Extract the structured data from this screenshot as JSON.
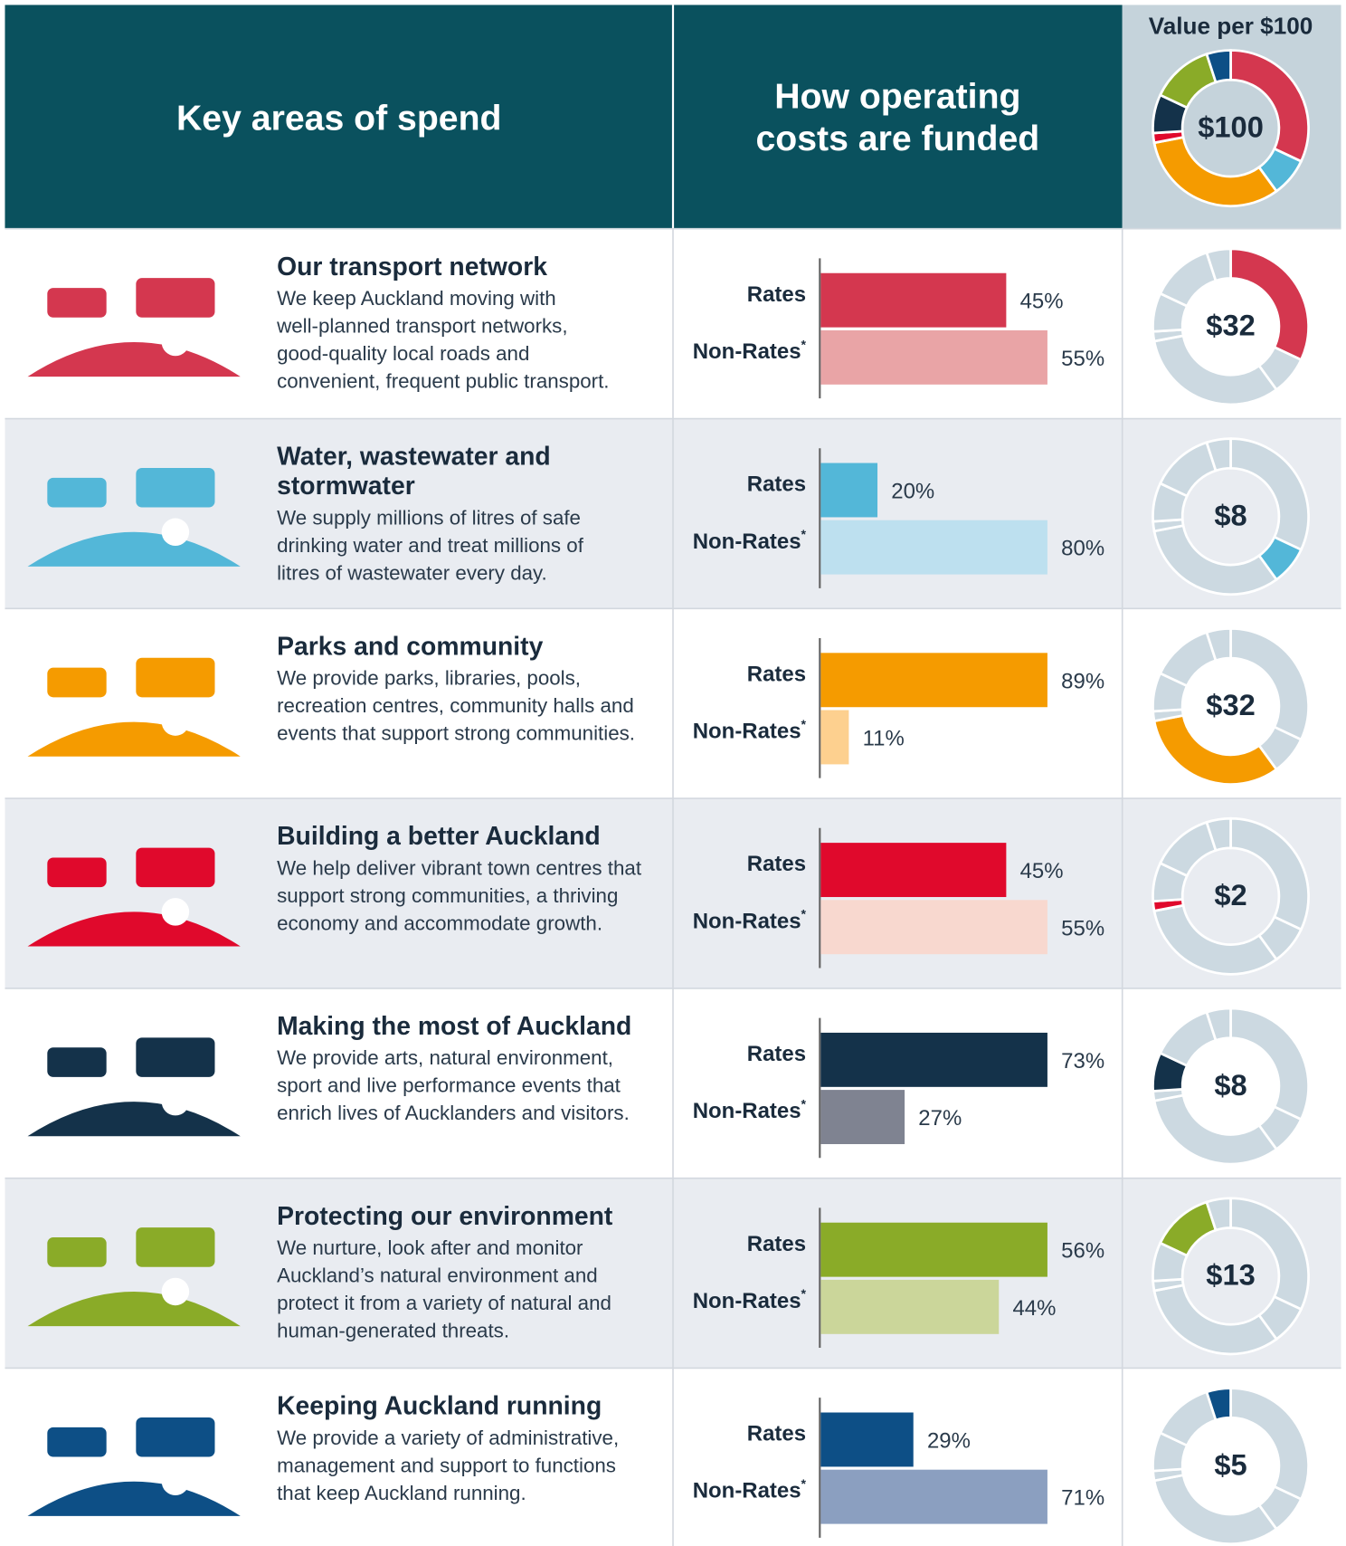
{
  "header": {
    "col1": "Key areas of spend",
    "col2": [
      "How operating",
      "costs are funded"
    ],
    "col3": "Value per $100",
    "total_label": "$100"
  },
  "rows": [
    {
      "title": [
        "Our transport network"
      ],
      "description": [
        "We keep Auckland moving with",
        "well-planned transport networks,",
        "good-quality local roads and",
        "convenient, frequent public transport."
      ],
      "rates": {
        "label": "Rates",
        "value": 45,
        "value_label": "45%",
        "color": "#d4374f"
      },
      "non_rates": {
        "label": "Non-Rates",
        "note": "*",
        "value": 55,
        "value_label": "55%",
        "color": "#e9a4a6"
      },
      "amount": 32,
      "amount_label": "$32",
      "color": "#d4374f"
    },
    {
      "title": [
        "Water, wastewater and",
        "stormwater"
      ],
      "description": [
        "We supply millions of litres of safe",
        "drinking water and treat millions of",
        "litres of wastewater every day."
      ],
      "rates": {
        "label": "Rates",
        "value": 20,
        "value_label": "20%",
        "color": "#53b7d8"
      },
      "non_rates": {
        "label": "Non-Rates",
        "note": "*",
        "value": 80,
        "value_label": "80%",
        "color": "#bde0ef"
      },
      "amount": 8,
      "amount_label": "$8",
      "color": "#53b7d8"
    },
    {
      "title": [
        "Parks and community"
      ],
      "description": [
        "We provide parks, libraries, pools,",
        "recreation centres, community halls and",
        "events that support strong communities."
      ],
      "rates": {
        "label": "Rates",
        "value": 89,
        "value_label": "89%",
        "color": "#f59b00"
      },
      "non_rates": {
        "label": "Non-Rates",
        "note": "*",
        "value": 11,
        "value_label": "11%",
        "color": "#fdd08f"
      },
      "amount": 32,
      "amount_label": "$32",
      "color": "#f59b00"
    },
    {
      "title": [
        "Building a better Auckland"
      ],
      "description": [
        "We help deliver vibrant town centres that",
        "support strong communities, a thriving",
        "economy and accommodate growth."
      ],
      "rates": {
        "label": "Rates",
        "value": 45,
        "value_label": "45%",
        "color": "#e0092c"
      },
      "non_rates": {
        "label": "Non-Rates",
        "note": "*",
        "value": 55,
        "value_label": "55%",
        "color": "#f8d8cf"
      },
      "amount": 2,
      "amount_label": "$2",
      "color": "#e0092c"
    },
    {
      "title": [
        "Making the most of Auckland"
      ],
      "description": [
        "We provide arts, natural environment,",
        "sport and live performance events that",
        "enrich lives of Aucklanders and visitors."
      ],
      "rates": {
        "label": "Rates",
        "value": 73,
        "value_label": "73%",
        "color": "#14324a"
      },
      "non_rates": {
        "label": "Non-Rates",
        "note": "*",
        "value": 27,
        "value_label": "27%",
        "color": "#7f8391"
      },
      "amount": 8,
      "amount_label": "$8",
      "color": "#14324a"
    },
    {
      "title": [
        "Protecting our environment"
      ],
      "description": [
        "We nurture, look after and monitor",
        "Auckland’s natural environment and",
        "protect it from a variety of natural and",
        "human-generated threats."
      ],
      "rates": {
        "label": "Rates",
        "value": 56,
        "value_label": "56%",
        "color": "#8aab28"
      },
      "non_rates": {
        "label": "Non-Rates",
        "note": "*",
        "value": 44,
        "value_label": "44%",
        "color": "#cbd69a"
      },
      "amount": 13,
      "amount_label": "$13",
      "color": "#8aab28"
    },
    {
      "title": [
        "Keeping Auckland running"
      ],
      "description": [
        "We provide a variety of administrative,",
        "management and support to functions",
        "that keep Auckland running."
      ],
      "rates": {
        "label": "Rates",
        "value": 29,
        "value_label": "29%",
        "color": "#0d4f86"
      },
      "non_rates": {
        "label": "Non-Rates",
        "note": "*",
        "value": 71,
        "value_label": "71%",
        "color": "#8b9fc0"
      },
      "amount": 5,
      "amount_label": "$5",
      "color": "#0d4f86"
    }
  ]
}
